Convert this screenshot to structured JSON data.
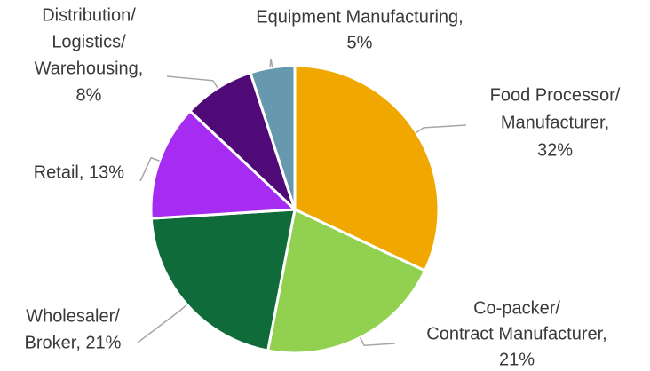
{
  "chart_data": {
    "type": "pie",
    "values": [
      32,
      21,
      21,
      13,
      8,
      5
    ],
    "value_labels": [
      [
        "Food Processor/",
        "Manufacturer,",
        "32%"
      ],
      [
        "Co-packer/",
        "Contract Manufacturer,",
        "21%"
      ],
      [
        "Wholesaler/",
        "Broker, 21%"
      ],
      [
        "Retail, 13%"
      ],
      [
        "Distribution/",
        "Logistics/",
        "Warehousing,",
        "8%"
      ],
      [
        "Equipment Manufacturing,",
        "5%"
      ]
    ],
    "colors": [
      "#f0a800",
      "#92d050",
      "#0f6b3a",
      "#a52cf0",
      "#4f0a78",
      "#6699b0"
    ]
  }
}
